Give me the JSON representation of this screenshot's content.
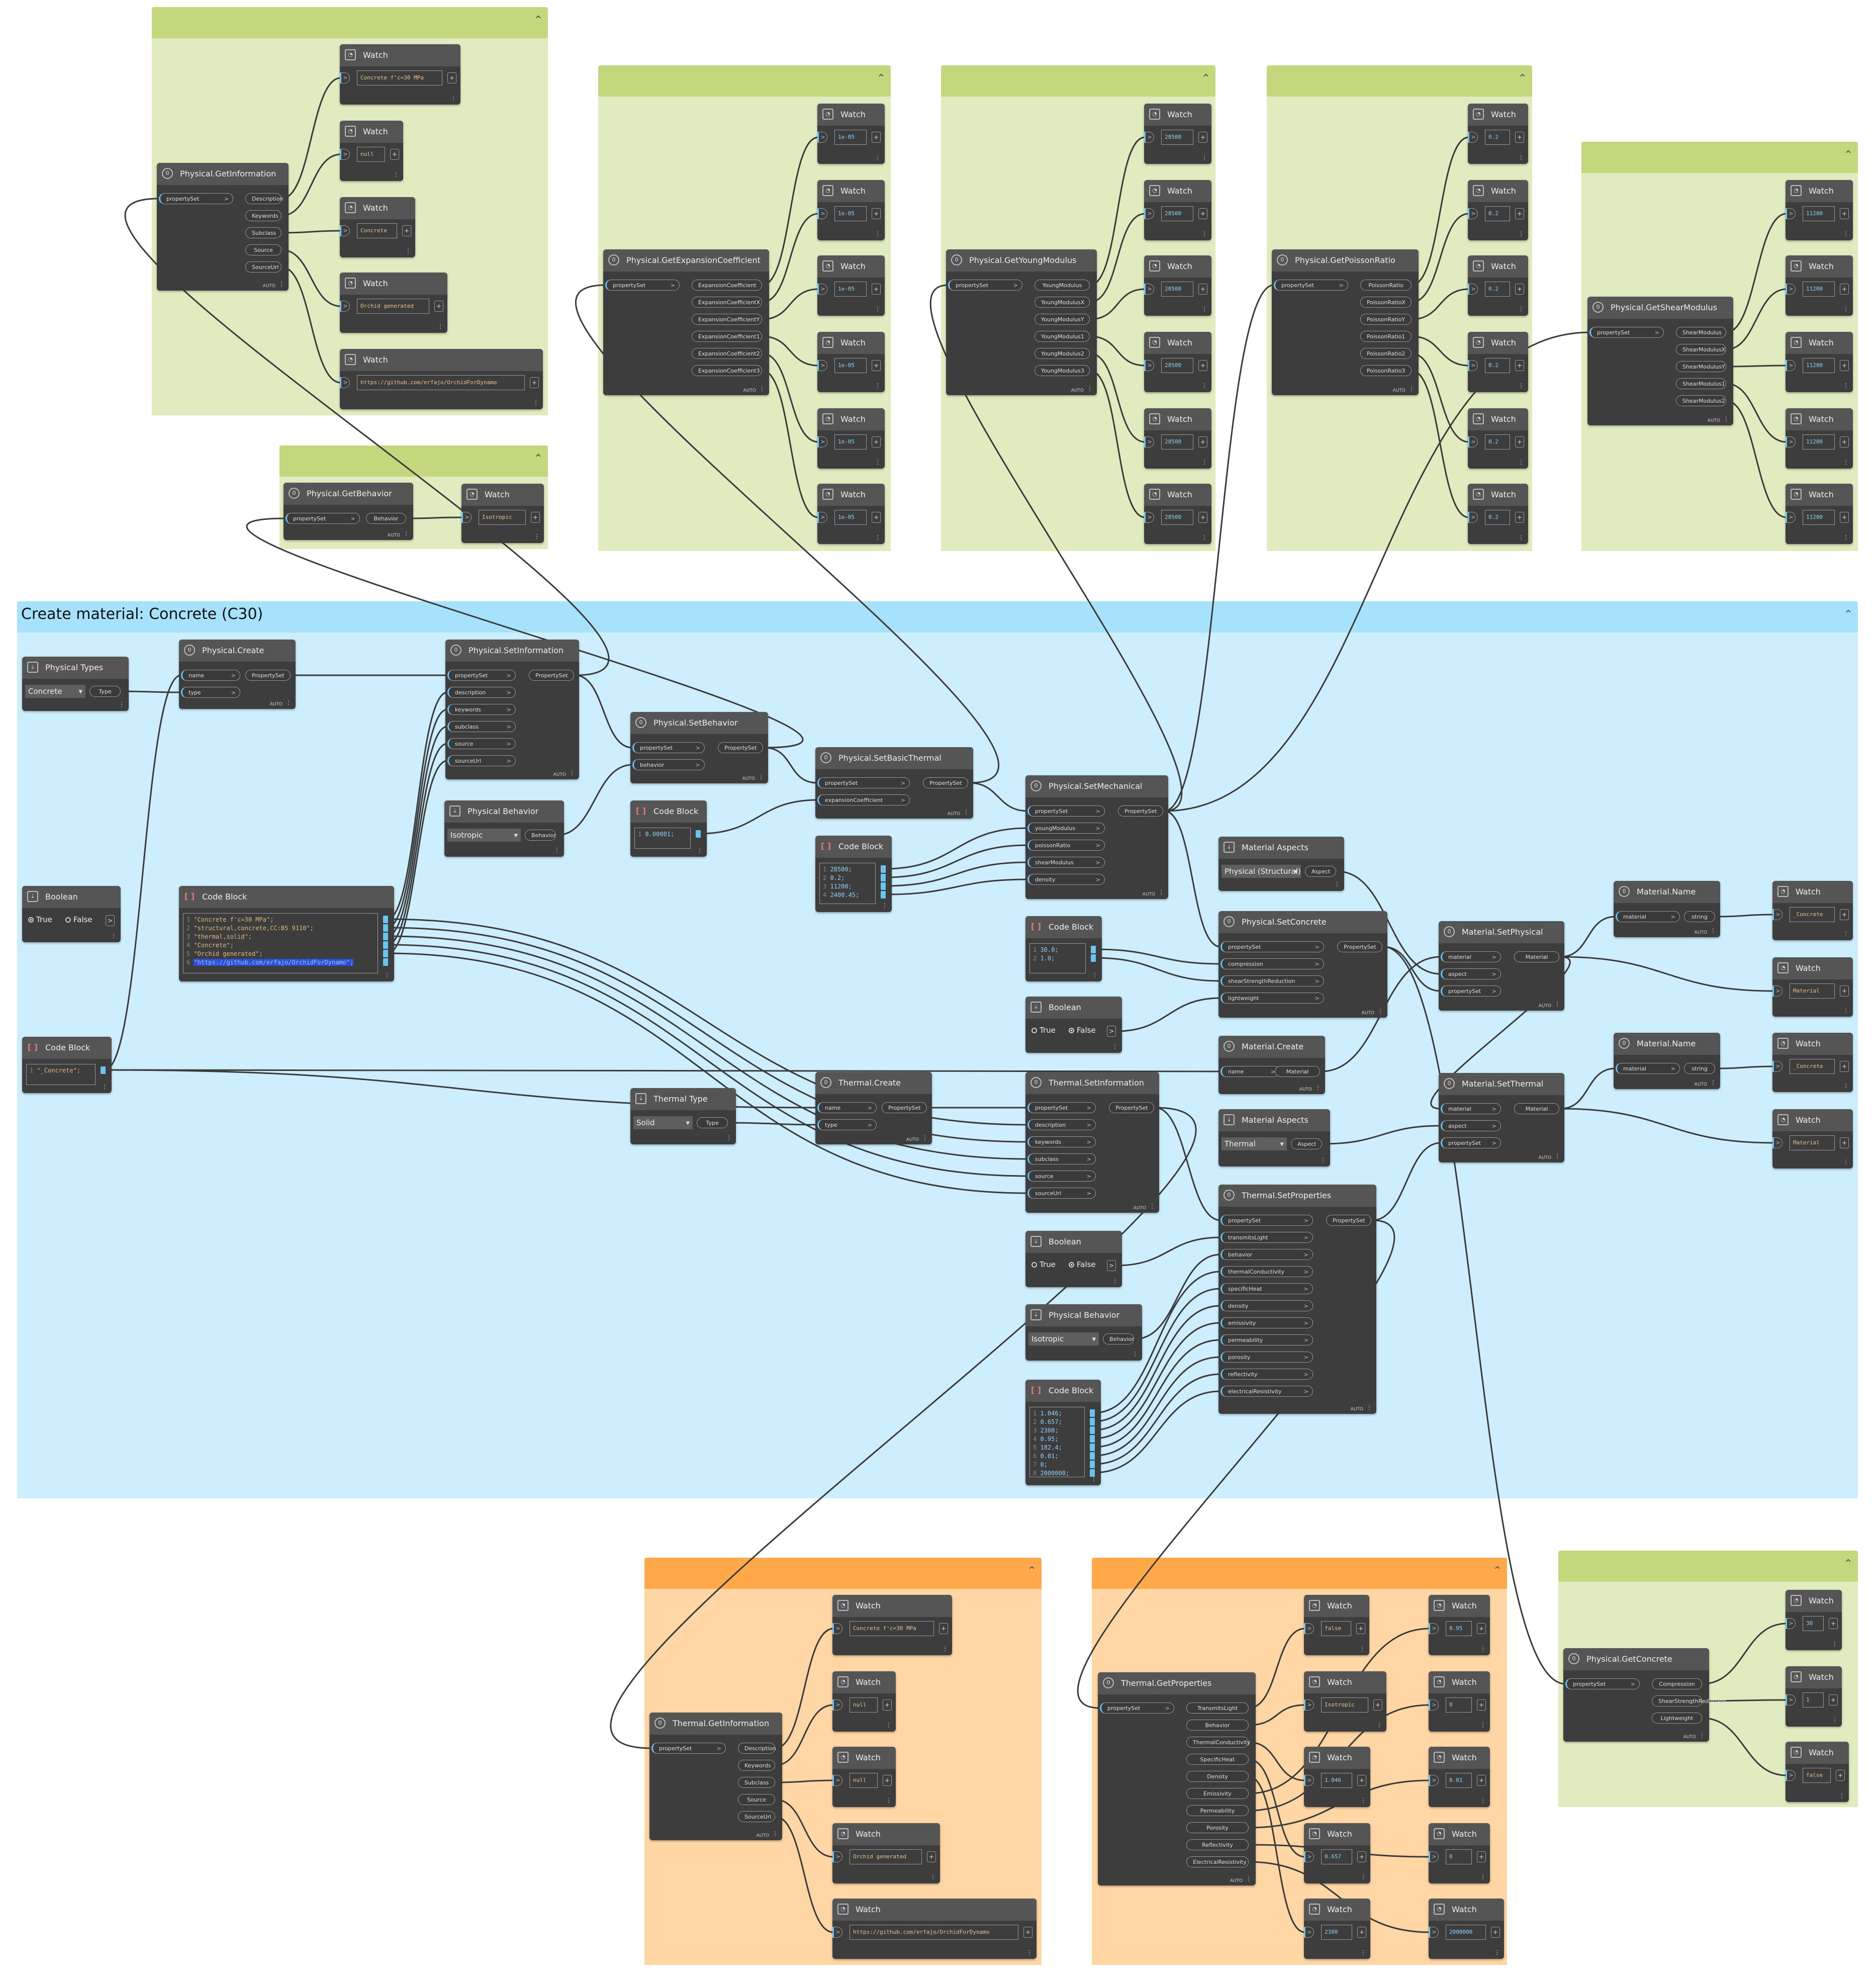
{
  "auto": "AUTO",
  "plus": "+",
  "more": "⋮",
  "groups": {
    "main_title": "Create material: Concrete (C30)"
  },
  "nodes": {
    "physical_getinformation": {
      "title": "Physical.GetInformation",
      "input": "propertySet",
      "outputs": [
        "Description",
        "Keywords",
        "Subclass",
        "Source",
        "SourceUrl"
      ]
    },
    "physical_getbehavior": {
      "title": "Physical.GetBehavior",
      "input": "propertySet",
      "output": "Behavior"
    },
    "physical_getexpansion": {
      "title": "Physical.GetExpansionCoefficient",
      "input": "propertySet",
      "outputs": [
        "ExpansionCoefficient",
        "ExpansionCoefficientX",
        "ExpansionCoefficientY",
        "ExpansionCoefficient1",
        "ExpansionCoefficient2",
        "ExpansionCoefficient3"
      ]
    },
    "physical_getyoung": {
      "title": "Physical.GetYoungModulus",
      "input": "propertySet",
      "outputs": [
        "YoungModulus",
        "YoungModulusX",
        "YoungModulusY",
        "YoungModulus1",
        "YoungModulus2",
        "YoungModulus3"
      ]
    },
    "physical_getpoisson": {
      "title": "Physical.GetPoissonRatio",
      "input": "propertySet",
      "outputs": [
        "PoissonRatio",
        "PoissonRatioX",
        "PoissonRatioY",
        "PoissonRatio1",
        "PoissonRatio2",
        "PoissonRatio3"
      ]
    },
    "physical_getshear": {
      "title": "Physical.GetShearModulus",
      "input": "propertySet",
      "outputs": [
        "ShearModulus",
        "ShearModulusX",
        "ShearModulusY",
        "ShearModulus1",
        "ShearModulus2"
      ]
    },
    "physical_types": {
      "title": "Physical Types",
      "value": "Concrete",
      "output": "Type"
    },
    "physical_create": {
      "title": "Physical.Create",
      "inputs": [
        "name",
        "type"
      ],
      "output": "PropertySet"
    },
    "physical_setinformation": {
      "title": "Physical.SetInformation",
      "inputs": [
        "propertySet",
        "description",
        "keywords",
        "subclass",
        "source",
        "sourceUrl"
      ],
      "output": "PropertySet"
    },
    "physical_setbehavior": {
      "title": "Physical.SetBehavior",
      "inputs": [
        "propertySet",
        "behavior"
      ],
      "output": "PropertySet"
    },
    "physical_behavior_1": {
      "title": "Physical Behavior",
      "value": "Isotropic",
      "output": "Behavior"
    },
    "codeblock_small": {
      "title": "Code Block",
      "lines": [
        "0.00001;"
      ]
    },
    "physical_setbasicthermal": {
      "title": "Physical.SetBasicThermal",
      "inputs": [
        "propertySet",
        "expansionCoefficient"
      ],
      "output": "PropertySet"
    },
    "codeblock_mech": {
      "title": "Code Block",
      "lines": [
        "28500;",
        "0.2;",
        "11200;",
        "2400.45;"
      ]
    },
    "physical_setmechanical": {
      "title": "Physical.SetMechanical",
      "inputs": [
        "propertySet",
        "youngModulus",
        "poissonRatio",
        "shearModulus",
        "density"
      ],
      "output": "PropertySet"
    },
    "boolean_1": {
      "title": "Boolean",
      "true": "True",
      "false": "False"
    },
    "codeblock_info": {
      "title": "Code Block",
      "lines": [
        "\"Concrete f'c=30 MPa\";",
        "\"structural,concrete,CC:B5 9110\";",
        "\"thermal,solid\";",
        "\"Concrete\";",
        "\"Orchid generated\";",
        "\"https://github.com/erfajo/OrchidForDynamo\";"
      ]
    },
    "material_aspects_1": {
      "title": "Material Aspects",
      "value": "Physical (Structural)",
      "output": "Aspect"
    },
    "physical_setconcrete": {
      "title": "Physical.SetConcrete",
      "inputs": [
        "propertySet",
        "compression",
        "shearStrengthReduction",
        "lightweight"
      ],
      "output": "PropertySet"
    },
    "codeblock_concrete": {
      "title": "Code Block",
      "lines": [
        "30.0;",
        "1.0;"
      ]
    },
    "boolean_2": {
      "title": "Boolean",
      "true": "True",
      "false": "False"
    },
    "material_name_1": {
      "title": "Material.Name",
      "input": "material",
      "output": "string"
    },
    "material_setphysical": {
      "title": "Material.SetPhysical",
      "inputs": [
        "material",
        "aspect",
        "propertySet"
      ],
      "output": "Material"
    },
    "codeblock_name": {
      "title": "Code Block",
      "lines": [
        "\"_Concrete\";"
      ]
    },
    "material_create": {
      "title": "Material.Create",
      "input": "name",
      "output": "Material"
    },
    "thermal_type": {
      "title": "Thermal Type",
      "value": "Solid",
      "output": "Type"
    },
    "thermal_create": {
      "title": "Thermal.Create",
      "inputs": [
        "name",
        "type"
      ],
      "output": "PropertySet"
    },
    "thermal_setinformation": {
      "title": "Thermal.SetInformation",
      "inputs": [
        "propertySet",
        "description",
        "keywords",
        "subclass",
        "source",
        "sourceUrl"
      ],
      "output": "PropertySet"
    },
    "material_aspects_2": {
      "title": "Material Aspects",
      "value": "Thermal",
      "output": "Aspect"
    },
    "material_name_2": {
      "title": "Material.Name",
      "input": "material",
      "output": "string"
    },
    "material_setthermal": {
      "title": "Material.SetThermal",
      "inputs": [
        "material",
        "aspect",
        "propertySet"
      ],
      "output": "Material"
    },
    "thermal_setproperties": {
      "title": "Thermal.SetProperties",
      "inputs": [
        "propertySet",
        "transmitsLight",
        "behavior",
        "thermalConductivity",
        "specificHeat",
        "density",
        "emissivity",
        "permeability",
        "porosity",
        "reflectivity",
        "electricalResistivity"
      ],
      "output": "PropertySet"
    },
    "boolean_3": {
      "title": "Boolean",
      "true": "True",
      "false": "False"
    },
    "physical_behavior_2": {
      "title": "Physical Behavior",
      "value": "Isotropic",
      "output": "Behavior"
    },
    "codeblock_thermal": {
      "title": "Code Block",
      "lines": [
        "1.046;",
        "0.657;",
        "2300;",
        "0.95;",
        "182.4;",
        "0.01;",
        "0;",
        "2000000;"
      ]
    },
    "thermal_getinformation": {
      "title": "Thermal.GetInformation",
      "input": "propertySet",
      "outputs": [
        "Description",
        "Keywords",
        "Subclass",
        "Source",
        "SourceUrl"
      ]
    },
    "thermal_getproperties": {
      "title": "Thermal.GetProperties",
      "input": "propertySet",
      "outputs": [
        "TransmitsLight",
        "Behavior",
        "ThermalConductivity",
        "SpecificHeat",
        "Density",
        "Emissivity",
        "Permeability",
        "Porosity",
        "Reflectivity",
        "ElectricalResistivity"
      ]
    },
    "physical_getconcrete": {
      "title": "Physical.GetConcrete",
      "input": "propertySet",
      "outputs": [
        "Compression",
        "ShearStrengthReduction",
        "Lightweight"
      ]
    }
  },
  "watch": {
    "title": "Watch",
    "info": [
      "Concrete f'c=30 MPa",
      "null",
      "Concrete",
      "Orchid generated",
      "https://github.com/erfajo/OrchidForDynamo"
    ],
    "behavior": "Isotropic",
    "expansion": [
      "1e-05",
      "1e-05",
      "1e-05",
      "1e-05",
      "1e-05",
      "1e-05"
    ],
    "young": [
      "28500",
      "28500",
      "28500",
      "28500",
      "28500",
      "28500"
    ],
    "poisson": [
      "0.2",
      "0.2",
      "0.2",
      "0.2",
      "0.2",
      "0.2"
    ],
    "shear": [
      "11200",
      "11200",
      "11200",
      "11200",
      "11200"
    ],
    "name1": "_Concrete",
    "mat1": "Material",
    "name2": "_Concrete",
    "mat2": "Material",
    "tinfo": [
      "Concrete f'c=30 MPa",
      "null",
      "null",
      "Orchid generated",
      "https://github.com/erfajo/OrchidForDynamo"
    ],
    "tprops_a": [
      "false",
      "Isotropic",
      "1.046",
      "0.657",
      "2300"
    ],
    "tprops_b": [
      "0.95",
      "0",
      "0.01",
      "0",
      "2000000"
    ],
    "concrete": [
      "30",
      "1",
      "false"
    ]
  }
}
